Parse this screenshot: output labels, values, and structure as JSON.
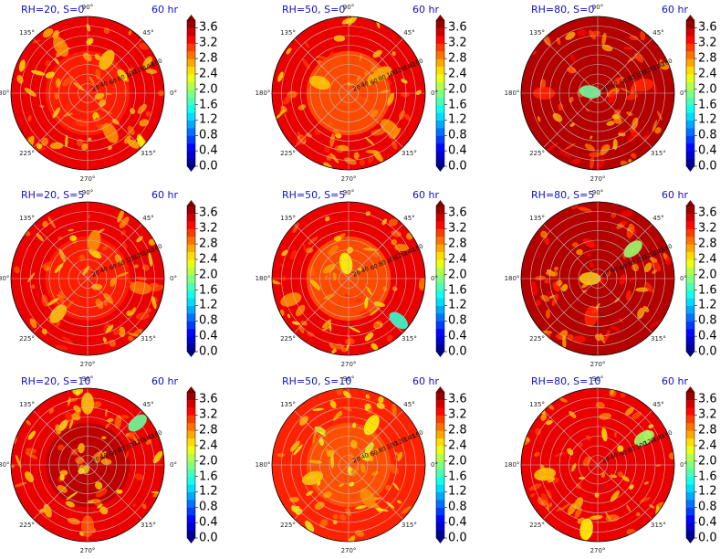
{
  "angle_labels": [
    "90°",
    "45°",
    "0°",
    "315°",
    "270°",
    "225°",
    "180°",
    "135°"
  ],
  "radial_labels": [
    "20",
    "40",
    "60",
    "80",
    "100",
    "120",
    "140",
    "160"
  ],
  "colorbar": {
    "ticks": [
      "0.0",
      "0.4",
      "0.8",
      "1.2",
      "1.6",
      "2.0",
      "2.4",
      "2.8",
      "3.2",
      "3.6"
    ],
    "levels": [
      0.0,
      0.2,
      0.4,
      0.6,
      0.8,
      1.0,
      1.2,
      1.4,
      1.6,
      1.8,
      2.0,
      2.2,
      2.4,
      2.6,
      2.8,
      3.0,
      3.2,
      3.4,
      3.6,
      3.8
    ]
  },
  "colors": {
    "title_text": "#1010c8",
    "colormap": "jet",
    "grid": "#bbbbbb"
  },
  "chart_data": [
    {
      "type": "heatmap",
      "projection": "polar",
      "title_left": "RH=20, S=0",
      "title_right": "60 hr",
      "background_level": 3.4,
      "inner_level": 3.2,
      "features": [
        {
          "angle_deg": 120,
          "radius": 0.7,
          "level": 2.8
        },
        {
          "angle_deg": 300,
          "radius": 0.6,
          "level": 2.8
        },
        {
          "angle_deg": 60,
          "radius": 0.5,
          "level": 2.6
        }
      ]
    },
    {
      "type": "heatmap",
      "projection": "polar",
      "title_left": "RH=50, S=0",
      "title_right": "60 hr",
      "background_level": 3.4,
      "inner_level": 3.0,
      "features": [
        {
          "angle_deg": 160,
          "radius": 0.4,
          "level": 2.6
        },
        {
          "angle_deg": 320,
          "radius": 0.7,
          "level": 2.8
        },
        {
          "angle_deg": 30,
          "radius": 0.5,
          "level": 2.7
        }
      ]
    },
    {
      "type": "heatmap",
      "projection": "polar",
      "title_left": "RH=80, S=0",
      "title_right": "60 hr",
      "background_level": 3.6,
      "inner_level": 3.6,
      "features": [
        {
          "angle_deg": 170,
          "radius": 0.1,
          "level": 1.8
        },
        {
          "angle_deg": 10,
          "radius": 0.6,
          "level": 3.2
        },
        {
          "angle_deg": 180,
          "radius": 0.7,
          "level": 3.2
        }
      ]
    },
    {
      "type": "heatmap",
      "projection": "polar",
      "title_left": "RH=20, S=5",
      "title_right": "60 hr",
      "background_level": 3.4,
      "inner_level": 3.2,
      "features": [
        {
          "angle_deg": 230,
          "radius": 0.6,
          "level": 2.6
        },
        {
          "angle_deg": 80,
          "radius": 0.5,
          "level": 2.8
        },
        {
          "angle_deg": 350,
          "radius": 0.7,
          "level": 2.9
        }
      ]
    },
    {
      "type": "heatmap",
      "projection": "polar",
      "title_left": "RH=50, S=5",
      "title_right": "60 hr",
      "background_level": 3.4,
      "inner_level": 3.0,
      "features": [
        {
          "angle_deg": 200,
          "radius": 0.8,
          "level": 2.8
        },
        {
          "angle_deg": 100,
          "radius": 0.2,
          "level": 2.4
        },
        {
          "angle_deg": 320,
          "radius": 0.85,
          "level": 1.6
        }
      ]
    },
    {
      "type": "heatmap",
      "projection": "polar",
      "title_left": "RH=80, S=5",
      "title_right": "60 hr",
      "background_level": 3.6,
      "inner_level": 3.6,
      "features": [
        {
          "angle_deg": 180,
          "radius": 0.1,
          "level": 2.6
        },
        {
          "angle_deg": 40,
          "radius": 0.6,
          "level": 2.0
        },
        {
          "angle_deg": 260,
          "radius": 0.5,
          "level": 3.2
        }
      ]
    },
    {
      "type": "heatmap",
      "projection": "polar",
      "title_left": "RH=20, S=10",
      "title_right": "60 hr",
      "background_level": 3.4,
      "inner_level": 3.6,
      "features": [
        {
          "angle_deg": 90,
          "radius": 0.8,
          "level": 2.6
        },
        {
          "angle_deg": 40,
          "radius": 0.85,
          "level": 1.8
        },
        {
          "angle_deg": 270,
          "radius": 0.8,
          "level": 3.0
        }
      ]
    },
    {
      "type": "heatmap",
      "projection": "polar",
      "title_left": "RH=50, S=10",
      "title_right": "60 hr",
      "background_level": 3.2,
      "inner_level": 3.0,
      "features": [
        {
          "angle_deg": 200,
          "radius": 0.5,
          "level": 2.6
        },
        {
          "angle_deg": 60,
          "radius": 0.6,
          "level": 2.4
        },
        {
          "angle_deg": 300,
          "radius": 0.5,
          "level": 2.8
        }
      ]
    },
    {
      "type": "heatmap",
      "projection": "polar",
      "title_left": "RH=80, S=10",
      "title_right": "60 hr",
      "background_level": 3.4,
      "inner_level": 3.4,
      "features": [
        {
          "angle_deg": 30,
          "radius": 0.7,
          "level": 2.0
        },
        {
          "angle_deg": 190,
          "radius": 0.7,
          "level": 2.6
        },
        {
          "angle_deg": 260,
          "radius": 0.85,
          "level": 2.4
        }
      ]
    }
  ]
}
